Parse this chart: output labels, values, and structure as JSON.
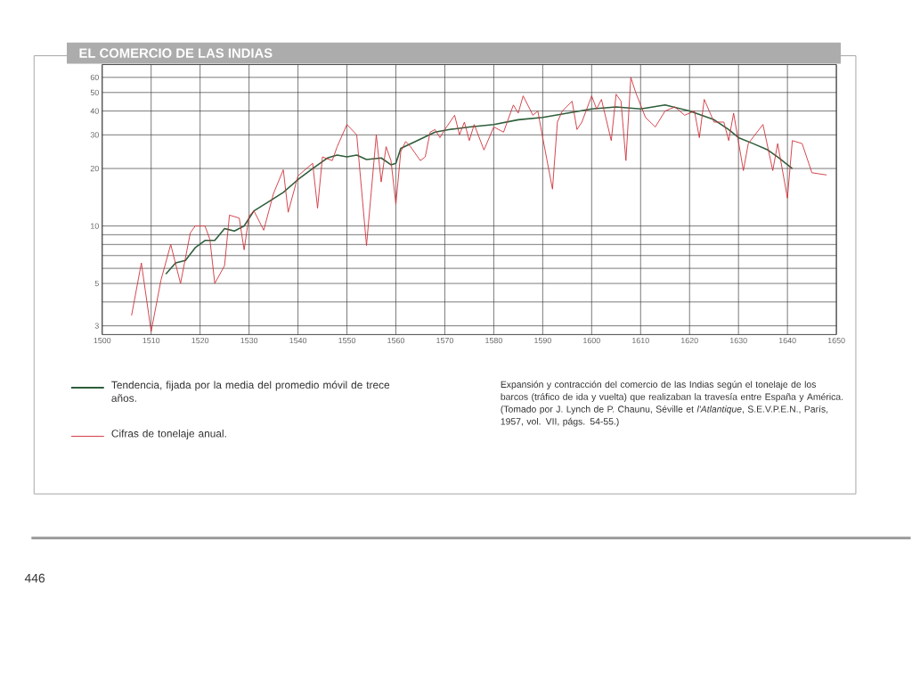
{
  "chart_data": {
    "type": "line",
    "title": "EL COMERCIO DE LAS INDIAS",
    "log": "y",
    "grid": true,
    "legend": "bottom",
    "xlim": [
      1500,
      1650
    ],
    "xticks": [
      1500,
      1510,
      1520,
      1530,
      1540,
      1550,
      1560,
      1570,
      1580,
      1590,
      1600,
      1610,
      1620,
      1630,
      1640,
      1650
    ],
    "ylim": [
      2.7,
      70
    ],
    "yticks": [
      3,
      {
        "value": 4,
        "label": null
      },
      5,
      {
        "value": 6,
        "label": null
      },
      {
        "value": 7,
        "label": null
      },
      {
        "value": 8,
        "label": null
      },
      {
        "value": 9,
        "label": null
      },
      10,
      20,
      30,
      40,
      50,
      60
    ],
    "series": [
      {
        "name": "Tendencia, fijada por la media del promedio móvil de trece años.",
        "color": "#2e5e3a",
        "x": [
          1513,
          1515,
          1517,
          1519,
          1521,
          1523,
          1525,
          1527,
          1529,
          1531,
          1534,
          1537,
          1540,
          1543,
          1546,
          1548,
          1550,
          1552,
          1554,
          1557,
          1559,
          1560,
          1561,
          1564,
          1566,
          1568,
          1571,
          1575,
          1580,
          1585,
          1590,
          1595,
          1600,
          1605,
          1610,
          1615,
          1620,
          1625,
          1628,
          1630,
          1633,
          1636,
          1638,
          1641
        ],
        "values": [
          5.6,
          6.4,
          6.6,
          7.7,
          8.4,
          8.4,
          9.7,
          9.4,
          10,
          12,
          13.4,
          15,
          17.5,
          20,
          22.7,
          23.5,
          23,
          23.5,
          22.3,
          22.7,
          20.9,
          21.3,
          25.5,
          27.7,
          29.3,
          31,
          32,
          33,
          34,
          36,
          37,
          39,
          41,
          42,
          41,
          43,
          40,
          36,
          32,
          29,
          27,
          25,
          23,
          20
        ]
      },
      {
        "name": "Cifras de tonelaje anual.",
        "color": "#d0303a",
        "x": [
          1506,
          1508,
          1510,
          1512,
          1514,
          1516,
          1518,
          1519,
          1521,
          1522,
          1523,
          1525,
          1526,
          1528,
          1529,
          1530,
          1531,
          1533,
          1535,
          1537,
          1538,
          1540,
          1543,
          1544,
          1545,
          1547,
          1548,
          1550,
          1552,
          1554,
          1556,
          1557,
          1558,
          1559,
          1560,
          1561,
          1562,
          1563,
          1565,
          1566,
          1567,
          1568,
          1569,
          1570,
          1572,
          1573,
          1574,
          1575,
          1576,
          1578,
          1580,
          1582,
          1584,
          1585,
          1586,
          1588,
          1589,
          1590,
          1592,
          1593,
          1594,
          1596,
          1597,
          1598,
          1600,
          1601,
          1602,
          1604,
          1605,
          1606,
          1607,
          1608,
          1609,
          1611,
          1613,
          1615,
          1617,
          1619,
          1621,
          1622,
          1623,
          1625,
          1627,
          1628,
          1629,
          1631,
          1632,
          1635,
          1637,
          1638,
          1640,
          1641,
          1643,
          1645,
          1648
        ],
        "values": [
          3.4,
          6.4,
          2.8,
          5.2,
          8,
          5,
          9.2,
          10,
          10,
          8.5,
          5,
          6.2,
          11.4,
          11,
          7.5,
          11.3,
          12,
          9.5,
          14.8,
          19.7,
          11.8,
          18.3,
          21.3,
          12.4,
          23,
          22,
          26,
          34,
          30,
          7.9,
          30,
          17,
          26,
          22,
          13,
          24.5,
          27.7,
          26,
          22,
          23,
          31,
          32,
          29,
          32,
          38,
          30,
          35,
          28,
          34,
          25,
          33,
          31,
          43,
          39,
          48,
          38,
          40,
          29,
          15.6,
          35,
          40,
          45,
          32,
          35,
          48,
          41,
          46,
          28,
          49,
          45,
          22,
          60,
          50,
          37,
          33,
          40,
          42,
          38,
          40,
          29,
          46,
          35,
          35,
          28,
          39,
          19.5,
          27,
          34,
          19.5,
          27,
          14,
          28,
          27,
          19,
          18.5
        ]
      }
    ],
    "annotations": [
      "Expansión y contracción del comercio de las Indias según el tonelaje de los barcos (tráfico de ida y vuelta) que realizaban la travesía entre España y América. (Tomado por J. Lynch de P. Chaunu, Séville et *l'Atlantique*, S.E.V.P.E.N., París, 1957, vol. VII, págs. 54-55.)",
      "446"
    ]
  }
}
